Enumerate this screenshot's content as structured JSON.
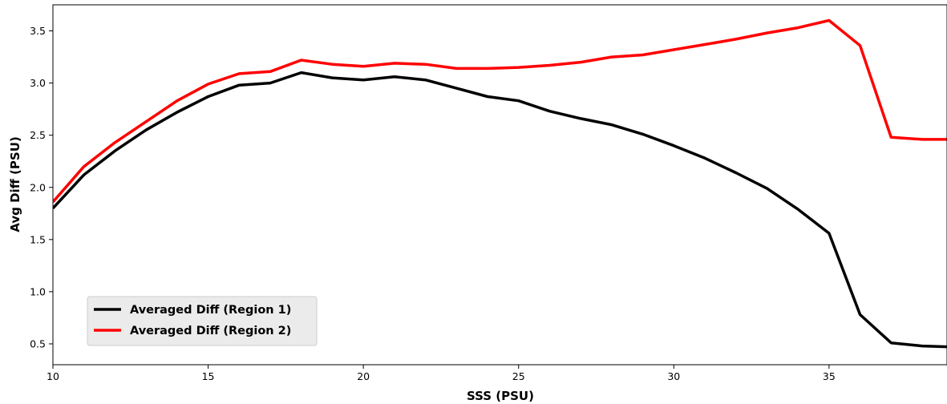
{
  "chart_data": {
    "type": "line",
    "title": "",
    "xlabel": "SSS (PSU)",
    "ylabel": "Avg Diff (PSU)",
    "xlim": [
      10,
      38.8
    ],
    "ylim": [
      0.3,
      3.75
    ],
    "xticks": [
      10,
      15,
      20,
      25,
      30,
      35
    ],
    "xtick_labels": [
      "10",
      "15",
      "20",
      "25",
      "30",
      "35"
    ],
    "yticks": [
      0.5,
      1.0,
      1.5,
      2.0,
      2.5,
      3.0,
      3.5
    ],
    "ytick_labels": [
      "0.5",
      "1.0",
      "1.5",
      "2.0",
      "2.5",
      "3.0",
      "3.5"
    ],
    "grid": false,
    "legend_position": "lower-left",
    "x": [
      10,
      11,
      12,
      13,
      14,
      15,
      16,
      17,
      18,
      19,
      20,
      21,
      22,
      23,
      24,
      25,
      26,
      27,
      28,
      29,
      30,
      31,
      32,
      33,
      34,
      35,
      36,
      37,
      38,
      39
    ],
    "series": [
      {
        "name": "Averaged Diff (Region 1)",
        "color": "#000000",
        "values": [
          1.8,
          2.12,
          2.35,
          2.55,
          2.72,
          2.87,
          2.98,
          3.0,
          3.1,
          3.05,
          3.03,
          3.06,
          3.03,
          2.95,
          2.87,
          2.83,
          2.73,
          2.66,
          2.6,
          2.51,
          2.4,
          2.28,
          2.14,
          1.99,
          1.79,
          1.56,
          0.78,
          0.51,
          0.48,
          0.47
        ]
      },
      {
        "name": "Averaged Diff (Region 2)",
        "color": "#ff0000",
        "values": [
          1.86,
          2.2,
          2.43,
          2.63,
          2.83,
          2.99,
          3.09,
          3.11,
          3.22,
          3.18,
          3.16,
          3.19,
          3.18,
          3.14,
          3.14,
          3.15,
          3.17,
          3.2,
          3.25,
          3.27,
          3.32,
          3.37,
          3.42,
          3.48,
          3.53,
          3.6,
          3.36,
          2.48,
          2.46,
          2.46
        ]
      }
    ]
  }
}
